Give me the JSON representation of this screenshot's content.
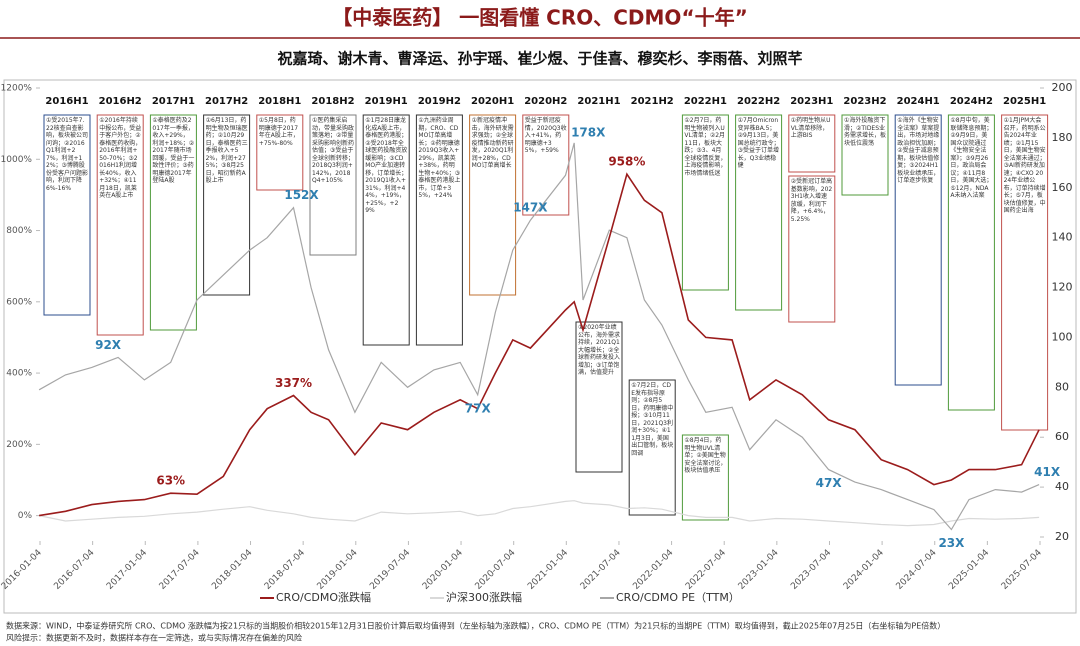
{
  "header": {
    "title": "【中泰医药】 一图看懂 CRO、CDMO“十年”",
    "authors": "祝嘉琦、谢木青、曹泽运、孙宇瑶、崔少煜、于佳喜、穆奕杉、李雨蓓、刘照芊"
  },
  "chart_data": {
    "type": "line",
    "x": [
      "2016-01",
      "2016-04",
      "2016-07",
      "2016-10",
      "2017-01",
      "2017-04",
      "2017-07",
      "2017-10",
      "2018-01",
      "2018-03",
      "2018-06",
      "2018-08",
      "2018-10",
      "2019-01",
      "2019-04",
      "2019-07",
      "2019-10",
      "2020-01",
      "2020-03",
      "2020-05",
      "2020-07",
      "2020-09",
      "2021-01",
      "2021-02",
      "2021-03",
      "2021-06",
      "2021-08",
      "2021-10",
      "2021-12",
      "2022-03",
      "2022-05",
      "2022-08",
      "2022-10",
      "2023-01",
      "2023-04",
      "2023-07",
      "2023-10",
      "2024-01",
      "2024-04",
      "2024-07",
      "2024-09",
      "2024-11",
      "2025-02",
      "2025-05",
      "2025-07"
    ],
    "series": [
      {
        "name": "CRO/CDMO涨跌幅",
        "color": "#9b1c1c",
        "values": [
          0,
          12,
          31,
          40,
          45,
          63,
          60,
          110,
          241,
          300,
          337,
          290,
          269,
          171,
          260,
          241,
          290,
          325,
          300,
          400,
          493,
          470,
          577,
          600,
          521,
          780,
          958,
          885,
          850,
          549,
          500,
          493,
          325,
          381,
          339,
          269,
          241,
          157,
          129,
          87,
          100,
          129,
          129,
          143,
          241
        ]
      },
      {
        "name": "沪深300涨跌幅",
        "color": "#d9d9d9",
        "values": [
          0,
          -15,
          -10,
          -5,
          -2,
          5,
          10,
          18,
          25,
          15,
          5,
          -5,
          -10,
          -15,
          10,
          5,
          8,
          12,
          0,
          5,
          20,
          25,
          40,
          42,
          35,
          30,
          20,
          22,
          18,
          0,
          -5,
          -5,
          -15,
          -8,
          -10,
          -15,
          -20,
          -25,
          -28,
          -25,
          -15,
          -8,
          -10,
          -8,
          -5
        ]
      },
      {
        "name": "CRO/CDMO PE（TTM）",
        "color": "#a6a6a6",
        "axis": "y2",
        "values": [
          79,
          85,
          88,
          92,
          83,
          90,
          115,
          125,
          135,
          140,
          152,
          120,
          95,
          70,
          90,
          80,
          87,
          90,
          77,
          110,
          135,
          147,
          165,
          178,
          115,
          143,
          140,
          115,
          105,
          83,
          70,
          72,
          55,
          67,
          60,
          47,
          42,
          39,
          35,
          31,
          23,
          35,
          39,
          38,
          41
        ]
      }
    ],
    "xlim": [
      "2016-01-04",
      "2025-07-04"
    ],
    "xticks": [
      "2016-01-04",
      "2016-07-04",
      "2017-01-04",
      "2017-07-04",
      "2018-01-04",
      "2018-07-04",
      "2019-01-04",
      "2019-07-04",
      "2020-01-04",
      "2020-07-04",
      "2021-01-04",
      "2021-07-04",
      "2022-01-04",
      "2022-07-04",
      "2023-01-04",
      "2023-07-04",
      "2024-01-04",
      "2024-07-04",
      "2025-01-04",
      "2025-07-04"
    ],
    "ylim": [
      -60,
      1200
    ],
    "yticks": [
      {
        "value": 0,
        "label": "0%"
      },
      {
        "value": 200,
        "label": "200%"
      },
      {
        "value": 400,
        "label": "400%"
      },
      {
        "value": 600,
        "label": "600%"
      },
      {
        "value": 800,
        "label": "800%"
      },
      {
        "value": 1000,
        "label": "1000%"
      },
      {
        "value": 1200,
        "label": "1200%"
      }
    ],
    "y2lim": [
      20,
      200
    ],
    "y2ticks": [
      20,
      40,
      60,
      80,
      100,
      120,
      140,
      160,
      180,
      200
    ],
    "annotations": [
      {
        "text": "63%",
        "x": "2017-04",
        "value": 63,
        "axis": "y"
      },
      {
        "text": "337%",
        "x": "2018-06",
        "value": 337,
        "axis": "y"
      },
      {
        "text": "958%",
        "x": "2021-08",
        "value": 958,
        "axis": "y"
      },
      {
        "text": "92X",
        "x": "2016-10",
        "value": 92,
        "axis": "y2"
      },
      {
        "text": "152X",
        "x": "2018-06",
        "value": 152,
        "axis": "y2"
      },
      {
        "text": "77X",
        "x": "2020-03",
        "value": 77,
        "axis": "y2"
      },
      {
        "text": "147X",
        "x": "2020-09",
        "value": 147,
        "axis": "y2"
      },
      {
        "text": "178X",
        "x": "2021-02",
        "value": 178,
        "axis": "y2"
      },
      {
        "text": "47X",
        "x": "2023-07",
        "value": 47,
        "axis": "y2"
      },
      {
        "text": "23X",
        "x": "2024-09",
        "value": 23,
        "axis": "y2"
      },
      {
        "text": "41X",
        "x": "2025-07",
        "value": 41,
        "axis": "y2"
      }
    ],
    "notes": [
      {
        "period": "2016H1",
        "boxes": [
          "①受2015年7.22核查自查影响，板块被公司问询；②2016Q1利润+27%，利润+12%；③博腾股份受客户问题影响，利润下降6%-16%"
        ]
      },
      {
        "period": "2016H2",
        "boxes": [
          "①2016年持续中报公布，受益于客户外包；②泰格医药收购，2016年利润+50-70%；③2016H1利润增长40%，收入+32%；④11月18日，凯莱英在A股上市"
        ]
      },
      {
        "period": "2017H1",
        "boxes": [
          "①泰格医药及2017年一季报，收入+29%，利润+18%；②2017年随市场回暖，受益于一致性评价；③药明康德2017年登陆A股"
        ]
      },
      {
        "period": "2017H2",
        "boxes": [
          "①6月13日，药明生物及恒瑞医药；②10月29日，泰格医药三季报收入+52%，利润+275%；③8月25日，昭衍新药A股上市"
        ]
      },
      {
        "period": "2018H1",
        "boxes": [
          "①5月8日，药明康德于2017年在A股上市，+75%-80%"
        ]
      },
      {
        "period": "2018H2",
        "boxes": [
          "①医药集采启动，带量采购政策落地；②带量采购影响创新药估值；③受益于全球创新转移；2018Q3利润+142%，2018Q4+105%"
        ]
      },
      {
        "period": "2019H1",
        "boxes": [
          "①1月28日康龙化成A股上市，泰格医药港股；②受2018年全球医药投融资放缓影响；③CDMO产业加速转移，订单增长；2019Q1收入+31%，利润+44%，+19%，+25%，+29%"
        ]
      },
      {
        "period": "2019H2",
        "boxes": [
          "①九洲药业周期，CRO、CDMO订单高增长；②药明康德2019Q3收入+29%，凯莱英+38%，药明生物+40%；③泰格医药港股上市，订单+35%，+24%"
        ]
      },
      {
        "period": "2020H1",
        "boxes": [
          "①新冠疫情冲击，海外研发需求强劲；②全球疫情推动新药研发，2020Q1利润+28%，CDMO订单高增长"
        ]
      },
      {
        "period": "2020H2",
        "boxes": [
          "受益于新冠疫情，2020Q3收入+41%，药明康德+35%，+59%"
        ]
      },
      {
        "period": "2021H1",
        "boxes": [
          "①2020年业绩公布，海外需求持续，2021Q1大幅增长；②全球新药研发投入增加；③订单饱满，估值提升"
        ]
      },
      {
        "period": "2021H2",
        "boxes": [
          "①7月2日，CDE发布指导原则；②8月5日，药明康德中报；③10月11日，2021Q3利润+30%；④11月3日，美国出口管制，板块回调"
        ]
      },
      {
        "period": "2022H1",
        "boxes": [
          "①2月7日，药明生物被列入UVL清单；②2月11日，板块大跌；③3、4月全球疫情反复，上海疫情影响，市场情绪低迷",
          "①8月4日，药明生物UVL清单；②美国生物安全法案讨论，板块估值承压"
        ]
      },
      {
        "period": "2022H2",
        "boxes": [
          "①7月Omicron变异株BA.5；②9月13日，美国总统行政令；③受益于订单增长，Q3业绩稳健"
        ]
      },
      {
        "period": "2023H1",
        "boxes": [
          "①药明生物从UVL清单移除，上游BIS",
          "②受新冠订单高基数影响，2023H1收入增速放缓，利润下降，+6.4%，5.25%"
        ]
      },
      {
        "period": "2023H2",
        "boxes": [
          "①海外投融资下滑；②TIDES业务需求增长，板块低位震荡"
        ]
      },
      {
        "period": "2024H1",
        "boxes": [
          "①海外《生物安全法案》草案提出，市场对地缘政治担忧加剧；②受益于减息预期，板块估值修复；③2024H1板块业绩承压，订单逐步恢复"
        ]
      },
      {
        "period": "2024H2",
        "boxes": [
          "①8月中旬，美联储降息预期；②9月9日，美国众议院通过《生物安全法案》；③9月26日，政治局会议；④11月8日，美国大选；⑤12月，NDAA未纳入法案"
        ]
      },
      {
        "period": "2025H1",
        "boxes": [
          "①1月JPM大会召开，药明系公告2024年业绩；②1月15日，美国生物安全法案未通过；③AI新药研发加速；④CXO 2024年业绩公布，订单持续增长；⑤7月，板块估值修复，中国药企出海"
        ]
      }
    ],
    "legend": "bottom"
  },
  "footer": {
    "source": "数据来源：WIND，中泰证券研究所   CRO、CDMO 涨跌幅为按21只标的当期股价相较2015年12月31日股价计算后取均值得到（左坐标轴为涨跌幅），CRO、CDMO PE（TTM）为21只标的当期PE（TTM）取均值得到，截止2025年07月25日（右坐标轴为PE倍数）",
    "risk": "风险提示：数据更新不及时，数据样本存在一定筛选，或与实际情况存在偏差的风险"
  }
}
